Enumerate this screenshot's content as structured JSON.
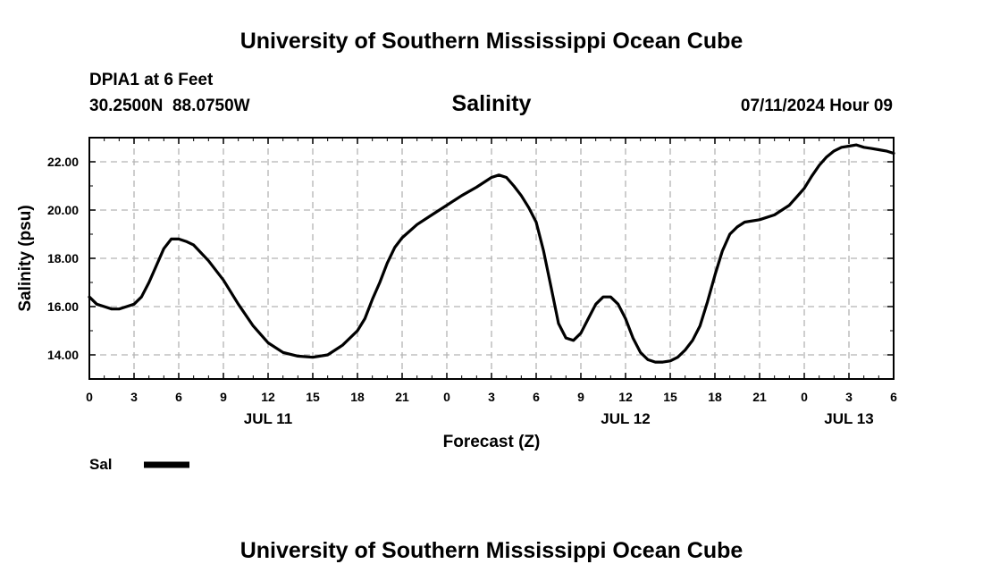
{
  "header": {
    "title_top": "University of Southern Mississippi Ocean Cube",
    "station": "DPIA1 at 6 Feet",
    "coords": "30.2500N  88.0750W",
    "datetime": "07/11/2024 Hour 09",
    "title_bottom": "University of Southern Mississippi Ocean Cube"
  },
  "legend": {
    "label": "Sal",
    "color": "#000000"
  },
  "chart_data": {
    "type": "line",
    "title": "Salinity",
    "xlabel": "Forecast (Z)",
    "ylabel": "Salinity (psu)",
    "ylim": [
      13.0,
      23.0
    ],
    "xlim_hours": [
      0,
      54
    ],
    "grid": true,
    "legend_position": "bottom-left",
    "y_ticks": [
      "14.00",
      "16.00",
      "18.00",
      "20.00",
      "22.00"
    ],
    "x_ticks": [
      "0",
      "3",
      "6",
      "9",
      "12",
      "15",
      "18",
      "21",
      "0",
      "3",
      "6",
      "9",
      "12",
      "15",
      "18",
      "21",
      "0",
      "3",
      "6"
    ],
    "date_labels": [
      {
        "text": "JUL 11",
        "tick_index": 4
      },
      {
        "text": "JUL 12",
        "tick_index": 12
      },
      {
        "text": "JUL 13",
        "tick_index": 17
      }
    ],
    "series": [
      {
        "name": "Sal",
        "color": "#000000",
        "x_hours": [
          0,
          0.5,
          1,
          1.5,
          2,
          2.5,
          3,
          3.5,
          4,
          4.5,
          5,
          5.5,
          6,
          6.5,
          7,
          8,
          9,
          10,
          11,
          12,
          13,
          14,
          15,
          16,
          17,
          18,
          18.5,
          19,
          19.5,
          20,
          20.5,
          21,
          22,
          23,
          24,
          25,
          26,
          27,
          27.5,
          28,
          28.5,
          29,
          29.5,
          30,
          30.5,
          31,
          31.5,
          32,
          32.5,
          33,
          33.5,
          34,
          34.5,
          35,
          35.5,
          36,
          36.5,
          37,
          37.5,
          38,
          38.5,
          39,
          39.5,
          40,
          40.5,
          41,
          41.5,
          42,
          42.5,
          43,
          43.5,
          44,
          45,
          46,
          47,
          48,
          48.5,
          49,
          49.5,
          50,
          50.5,
          51,
          51.5,
          52,
          52.5,
          53,
          53.5,
          54
        ],
        "values": [
          16.4,
          16.1,
          16.0,
          15.9,
          15.9,
          16.0,
          16.1,
          16.4,
          17.0,
          17.7,
          18.4,
          18.8,
          18.8,
          18.7,
          18.55,
          17.9,
          17.1,
          16.1,
          15.2,
          14.5,
          14.1,
          13.95,
          13.9,
          14.0,
          14.4,
          15.0,
          15.5,
          16.3,
          17.0,
          17.8,
          18.45,
          18.85,
          19.4,
          19.8,
          20.2,
          20.6,
          20.95,
          21.35,
          21.45,
          21.35,
          21.0,
          20.6,
          20.1,
          19.5,
          18.3,
          16.8,
          15.3,
          14.7,
          14.6,
          14.9,
          15.5,
          16.1,
          16.4,
          16.4,
          16.1,
          15.5,
          14.7,
          14.1,
          13.8,
          13.7,
          13.7,
          13.75,
          13.9,
          14.2,
          14.6,
          15.2,
          16.2,
          17.3,
          18.3,
          19.0,
          19.3,
          19.5,
          19.6,
          19.8,
          20.2,
          20.9,
          21.4,
          21.85,
          22.2,
          22.45,
          22.6,
          22.65,
          22.7,
          22.6,
          22.55,
          22.5,
          22.45,
          22.35
        ]
      }
    ]
  }
}
